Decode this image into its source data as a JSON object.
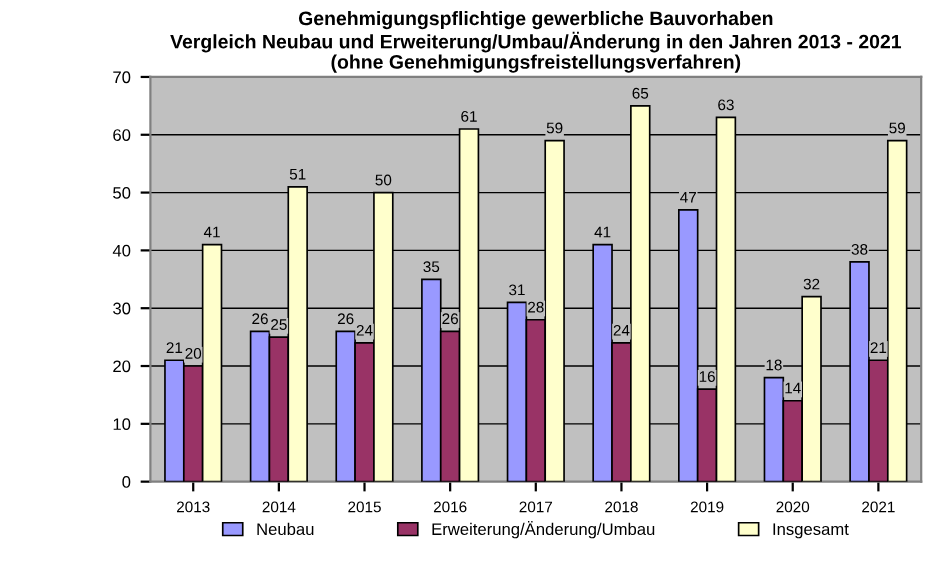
{
  "chart_data": {
    "type": "bar",
    "title": "Genehmigungspflichtige gewerbliche Bauvorhaben\nVergleich Neubau und Erweiterung/Umbau/Änderung in den Jahren 2013 - 2021\n(ohne Genehmigungsfreistellungsverfahren)",
    "categories": [
      "2013",
      "2014",
      "2015",
      "2016",
      "2017",
      "2018",
      "2019",
      "2020",
      "2021"
    ],
    "series": [
      {
        "name": "Neubau",
        "color": "#9999ff",
        "values": [
          21,
          26,
          26,
          35,
          31,
          41,
          47,
          18,
          38
        ]
      },
      {
        "name": "Erweiterung/Änderung/Umbau",
        "color": "#993366",
        "values": [
          20,
          25,
          24,
          26,
          28,
          24,
          16,
          14,
          21
        ]
      },
      {
        "name": "Insgesamt",
        "color": "#ffffcc",
        "values": [
          41,
          51,
          50,
          61,
          59,
          65,
          63,
          32,
          59
        ]
      }
    ],
    "ylim": [
      0,
      70
    ],
    "yticks": [
      0,
      10,
      20,
      30,
      40,
      50,
      60,
      70
    ],
    "grid": "y",
    "legend": "bottom",
    "data_labels": true
  }
}
